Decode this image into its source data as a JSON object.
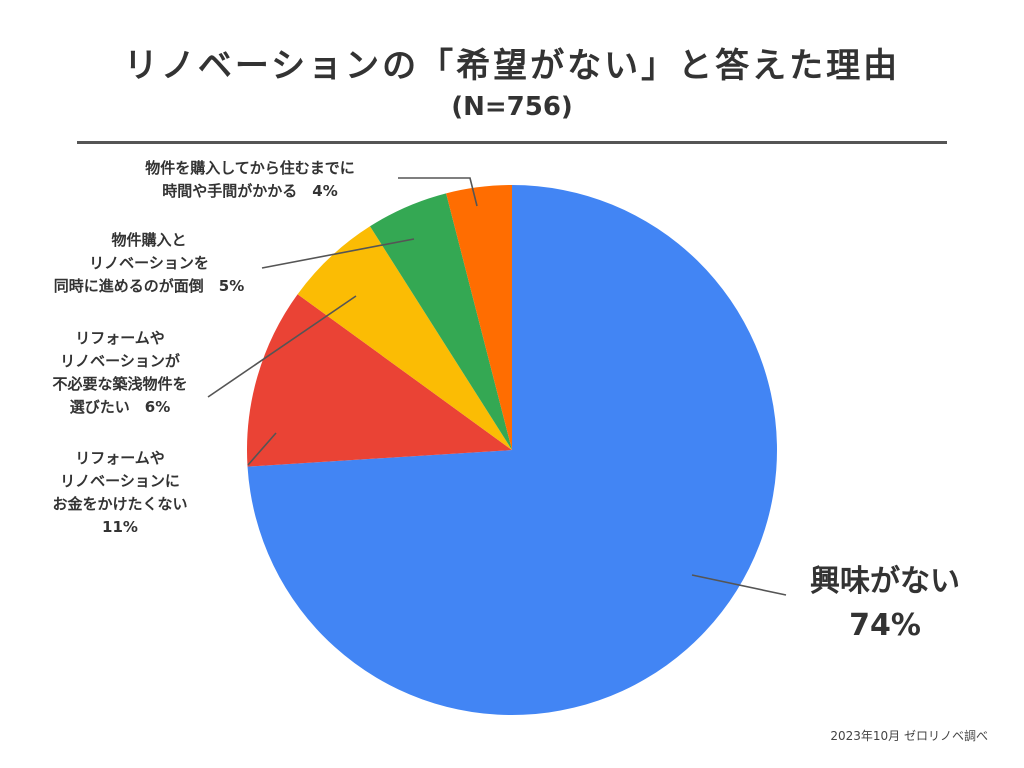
{
  "title": "リノベーションの「希望がない」と答えた理由",
  "subtitle": "(N=756)",
  "source": "2023年10月 ゼロリノベ調べ",
  "chart_data": {
    "type": "pie",
    "start_angle_deg": 0,
    "direction": "clockwise",
    "slices": [
      {
        "lines": [
          "興味がない",
          "74%"
        ],
        "value": 74,
        "color": "#4285F4"
      },
      {
        "lines": [
          "リフォームや",
          "リノベーションに",
          "お金をかけたくない",
          "11%"
        ],
        "value": 11,
        "color": "#EA4335"
      },
      {
        "lines": [
          "リフォームや",
          "リノベーションが",
          "不必要な築浅物件を",
          "選びたい　6%"
        ],
        "value": 6,
        "color": "#FBBC04"
      },
      {
        "lines": [
          "物件購入と",
          "リノベーションを",
          "同時に進めるのが面倒　5%"
        ],
        "value": 5,
        "color": "#34A853"
      },
      {
        "lines": [
          "物件を購入してから住むまでに",
          "時間や手間がかかる　4%"
        ],
        "value": 4,
        "color": "#FF6D01"
      }
    ]
  }
}
